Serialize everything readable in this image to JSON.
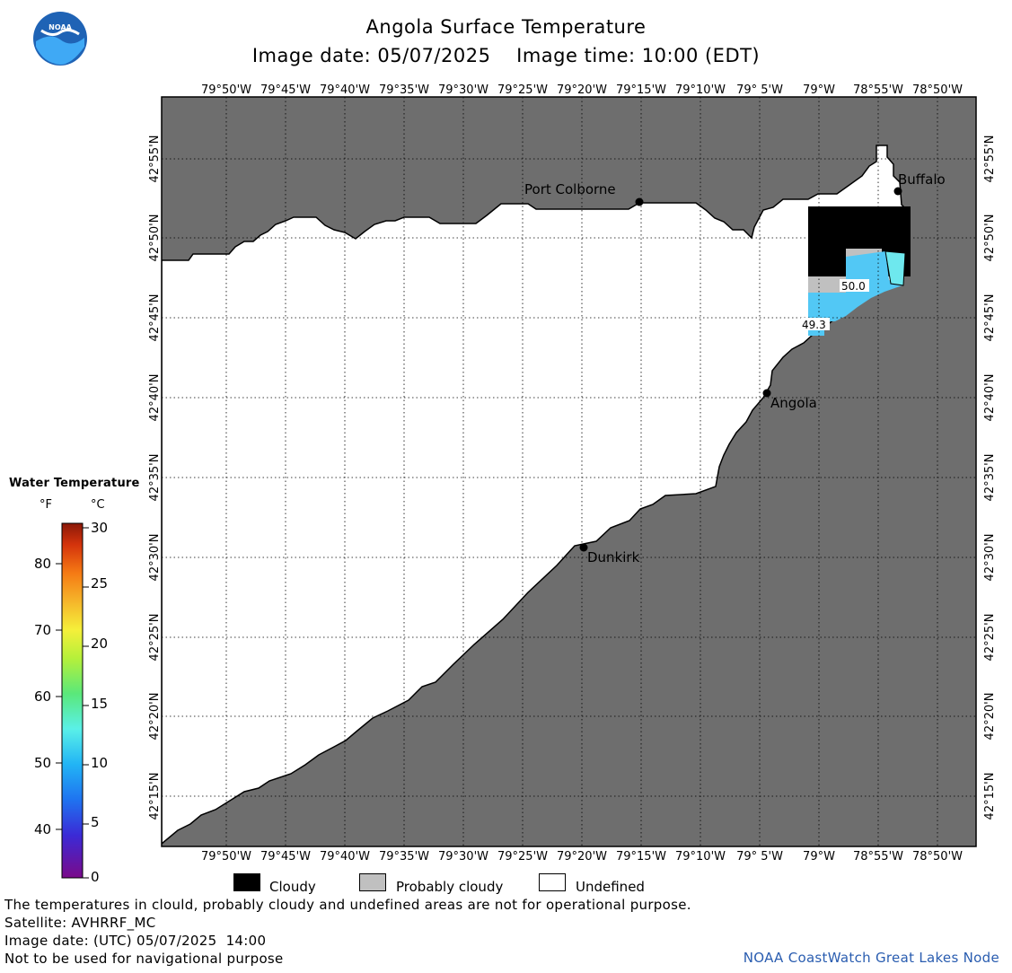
{
  "header": {
    "title": "Angola Surface Temperature",
    "date_line": "Image date: 05/07/2025    Image time: 10:00 (EDT)"
  },
  "map": {
    "lon_labels": [
      "79°50'W",
      "79°45'W",
      "79°40'W",
      "79°35'W",
      "79°30'W",
      "79°25'W",
      "79°20'W",
      "79°15'W",
      "79°10'W",
      "79° 5'W",
      "79°W",
      "78°55'W",
      "78°50'W"
    ],
    "lat_labels": [
      "42°55'N",
      "42°50'N",
      "42°45'N",
      "42°40'N",
      "42°35'N",
      "42°30'N",
      "42°25'N",
      "42°20'N",
      "42°15'N"
    ],
    "places": [
      {
        "name": "Port Colborne"
      },
      {
        "name": "Buffalo"
      },
      {
        "name": "Angola"
      },
      {
        "name": "Dunkirk"
      }
    ],
    "temperature_labels": [
      "50.0",
      "49.3"
    ],
    "colors": {
      "land": "#6e6e6e",
      "undefined": "#ffffff",
      "cloudy": "#000000",
      "probably_cloudy": "#c0c0c0",
      "water_cold": "#52c8f5",
      "water_cyan": "#6ee8ee"
    }
  },
  "color_scale": {
    "title": "Water Temperature",
    "unit_f": "°F",
    "unit_c": "°C",
    "f_ticks": [
      "80",
      "70",
      "60",
      "50",
      "40"
    ],
    "c_ticks": [
      "30",
      "25",
      "20",
      "15",
      "10",
      "5",
      "0"
    ]
  },
  "legend": [
    {
      "label": "Cloudy",
      "color": "#000000"
    },
    {
      "label": "Probably cloudy",
      "color": "#c0c0c0"
    },
    {
      "label": "Undefined",
      "color": "#ffffff"
    }
  ],
  "footer": {
    "note": "The temperatures in clould, probably cloudy and undefined areas are not for operational purpose.",
    "satellite": "Satellite: AVHRRF_MC",
    "utc_date": "Image date: (UTC) 05/07/2025  14:00",
    "nav_warning": "Not to be used for navigational purpose",
    "credit": "NOAA CoastWatch Great Lakes Node"
  }
}
